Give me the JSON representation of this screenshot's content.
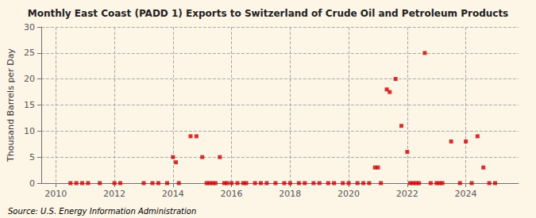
{
  "chart_data": {
    "type": "scatter",
    "title": "Monthly East Coast (PADD 1) Exports to Switzerland of Crude Oil and Petroleum Products",
    "ylabel": "Thousand Barrels per Day",
    "annotations": [
      "Source: U.S. Energy Information Administration"
    ],
    "color": "#cc0000",
    "marker": "square",
    "grid": true,
    "xlim": [
      2009.5,
      2025.8
    ],
    "xticks": [
      2010,
      2012,
      2014,
      2016,
      2018,
      2020,
      2022,
      2024
    ],
    "ylim": [
      0,
      30
    ],
    "yticks": [
      0,
      5,
      10,
      15,
      20,
      25,
      30
    ],
    "x": [
      2010.5,
      2010.7,
      2010.9,
      2011.1,
      2011.5,
      2012.0,
      2012.2,
      2013.0,
      2013.3,
      2013.5,
      2013.8,
      2014.0,
      2014.1,
      2014.2,
      2014.6,
      2014.8,
      2015.0,
      2015.15,
      2015.25,
      2015.35,
      2015.45,
      2015.6,
      2015.75,
      2015.85,
      2016.0,
      2016.2,
      2016.4,
      2016.5,
      2016.8,
      2017.0,
      2017.2,
      2017.5,
      2017.8,
      2018.0,
      2018.3,
      2018.5,
      2018.8,
      2019.0,
      2019.3,
      2019.5,
      2019.8,
      2020.0,
      2020.3,
      2020.5,
      2020.7,
      2020.9,
      2021.0,
      2021.1,
      2021.3,
      2021.4,
      2021.6,
      2021.8,
      2022.0,
      2022.1,
      2022.2,
      2022.3,
      2022.4,
      2022.6,
      2022.8,
      2023.0,
      2023.1,
      2023.2,
      2023.5,
      2023.8,
      2024.0,
      2024.2,
      2024.4,
      2024.6,
      2024.8,
      2025.0
    ],
    "values": [
      0.0,
      0.0,
      0.0,
      0.0,
      0.0,
      0.0,
      0.0,
      0.0,
      0.0,
      0.0,
      0.0,
      5.0,
      4.0,
      0.0,
      9.0,
      9.0,
      5.0,
      0.0,
      0.0,
      0.0,
      0.0,
      5.0,
      0.0,
      0.0,
      0.0,
      0.0,
      0.0,
      0.0,
      0.0,
      0.0,
      0.0,
      0.0,
      0.0,
      0.0,
      0.0,
      0.0,
      0.0,
      0.0,
      0.0,
      0.0,
      0.0,
      0.0,
      0.0,
      0.0,
      0.0,
      3.0,
      3.0,
      0.0,
      18.0,
      17.5,
      20.0,
      11.0,
      6.0,
      0.0,
      0.0,
      0.0,
      0.0,
      25.0,
      0.0,
      0.0,
      0.0,
      0.0,
      8.0,
      0.0,
      8.0,
      0.0,
      9.0,
      3.0,
      0.0,
      0.0
    ]
  }
}
